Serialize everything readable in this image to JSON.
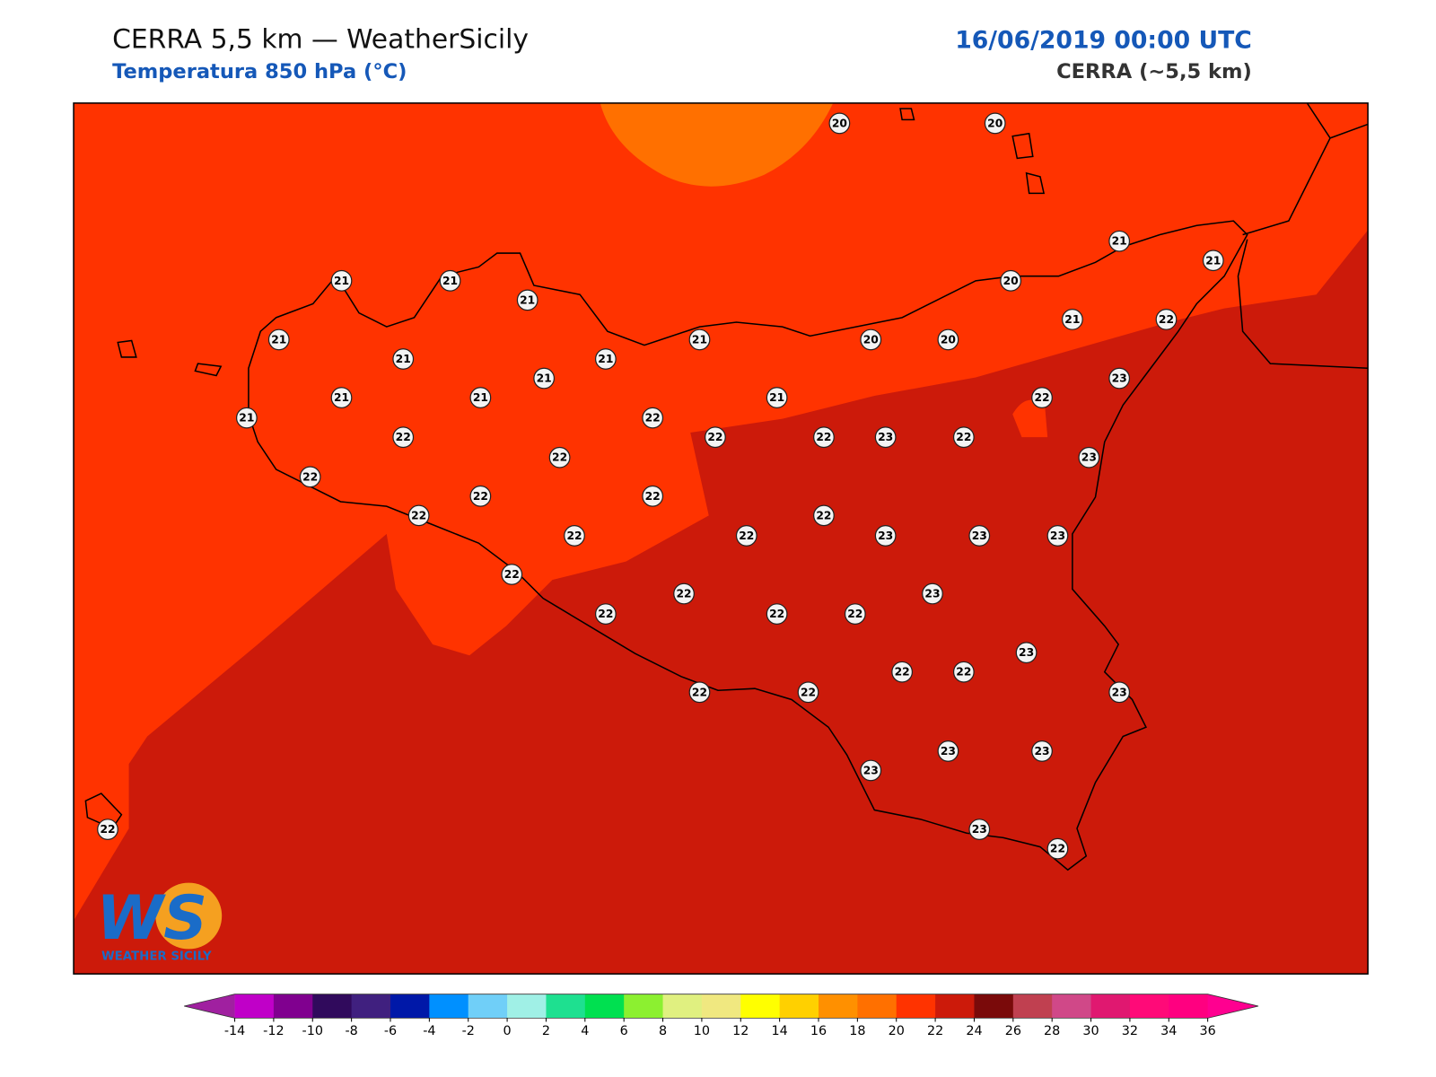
{
  "header": {
    "title": "CERRA 5,5 km — WeatherSicily",
    "subtitle": "Temperatura 850 hPa (°C)",
    "date": "16/06/2019 00:00 UTC",
    "model": "CERRA (~5,5 km)"
  },
  "logo": {
    "mark": "WS",
    "text": "WEATHER SICILY"
  },
  "stations": {
    "values": [
      20,
      20,
      21,
      21,
      21,
      21,
      21,
      20,
      21,
      21,
      21,
      21,
      20,
      20,
      21,
      22,
      21,
      21,
      21,
      21,
      21,
      23,
      22,
      22,
      22,
      22,
      22,
      23,
      22,
      22,
      23,
      22,
      22,
      22,
      22,
      22,
      22,
      22,
      23,
      23,
      23,
      22,
      22,
      23,
      22,
      22,
      22,
      23,
      22,
      22,
      22,
      22,
      23,
      23,
      23,
      23,
      23,
      22,
      22
    ]
  },
  "colorbar": {
    "ticks": [
      -14,
      -12,
      -10,
      -8,
      -6,
      -4,
      -2,
      0,
      2,
      4,
      6,
      8,
      10,
      12,
      14,
      16,
      18,
      20,
      22,
      24,
      26,
      28,
      30,
      32,
      34,
      36
    ],
    "colors": [
      "#c000c8",
      "#80008f",
      "#300a5c",
      "#40207f",
      "#0018a8",
      "#0090ff",
      "#70cff8",
      "#a0f0e6",
      "#1ee090",
      "#00e050",
      "#8cf030",
      "#e0f080",
      "#f0e880",
      "#ffff00",
      "#ffd000",
      "#ff9000",
      "#ff7000",
      "#ff3300",
      "#cc1a0a",
      "#7a0a0a",
      "#c04050",
      "#d04888",
      "#e01870",
      "#ff0a78",
      "#ff0080"
    ],
    "under": "#a020a0",
    "over": "#ff0090"
  }
}
